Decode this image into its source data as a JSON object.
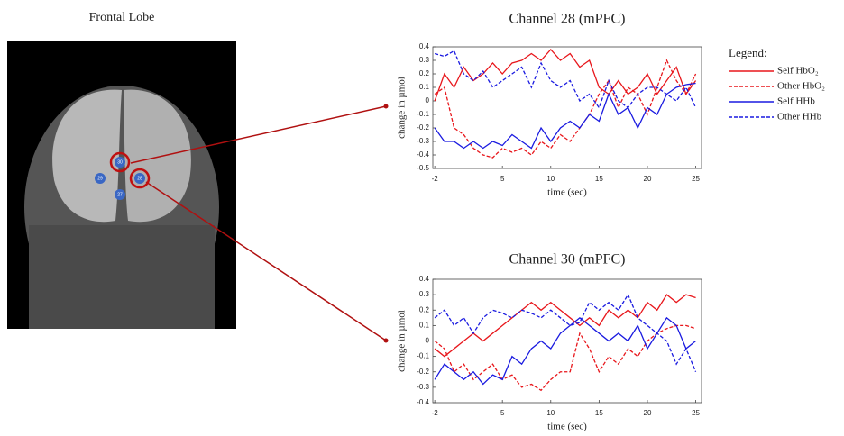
{
  "brain": {
    "title": "Frontal Lobe",
    "electrodes": [
      "30",
      "29",
      "28",
      "27"
    ]
  },
  "legend_title": "Legend:",
  "chart_data": [
    {
      "type": "line",
      "title": "Channel 28 (mPFC)",
      "x_label": "time (sec)",
      "y_label": "change in µmol",
      "x": [
        -2,
        -1,
        0,
        1,
        2,
        3,
        4,
        5,
        6,
        7,
        8,
        9,
        10,
        11,
        12,
        13,
        14,
        15,
        16,
        17,
        18,
        19,
        20,
        21,
        22,
        23,
        24,
        25
      ],
      "xlim": [
        -2.2,
        25.6
      ],
      "xticks": [
        -2,
        5,
        10,
        15,
        20,
        25
      ],
      "ylim": [
        -0.5,
        0.4
      ],
      "yticks": [
        -0.5,
        -0.4,
        -0.3,
        -0.2,
        -0.1,
        0,
        0.1,
        0.2,
        0.3,
        0.4
      ],
      "series": [
        {
          "name": "Self HbO₂",
          "color": "#e8161b",
          "style": "solid",
          "values": [
            0,
            0.2,
            0.1,
            0.25,
            0.15,
            0.2,
            0.28,
            0.2,
            0.28,
            0.3,
            0.35,
            0.3,
            0.38,
            0.3,
            0.35,
            0.25,
            0.3,
            0.1,
            0.05,
            0.15,
            0.05,
            0.1,
            0.2,
            0.05,
            0.15,
            0.25,
            0.05,
            0.15
          ]
        },
        {
          "name": "Other HbO₂",
          "color": "#e8161b",
          "style": "dashed",
          "values": [
            0.05,
            0.1,
            -0.2,
            -0.25,
            -0.35,
            -0.4,
            -0.42,
            -0.35,
            -0.38,
            -0.35,
            -0.4,
            -0.3,
            -0.35,
            -0.25,
            -0.3,
            -0.2,
            -0.1,
            0.05,
            0.15,
            -0.05,
            0.1,
            0.05,
            -0.1,
            0.1,
            0.3,
            0.15,
            0.05,
            0.2
          ]
        },
        {
          "name": "Self HHb",
          "color": "#1a1ae0",
          "style": "solid",
          "values": [
            -0.2,
            -0.3,
            -0.3,
            -0.35,
            -0.3,
            -0.35,
            -0.3,
            -0.33,
            -0.25,
            -0.3,
            -0.35,
            -0.2,
            -0.3,
            -0.2,
            -0.15,
            -0.2,
            -0.1,
            -0.15,
            0.05,
            -0.1,
            -0.05,
            -0.2,
            -0.05,
            -0.1,
            0.05,
            0.1,
            0.12,
            0.13
          ]
        },
        {
          "name": "Other HHb",
          "color": "#1a1ae0",
          "style": "dashed",
          "values": [
            0.35,
            0.33,
            0.37,
            0.2,
            0.15,
            0.22,
            0.1,
            0.15,
            0.2,
            0.25,
            0.1,
            0.28,
            0.15,
            0.1,
            0.15,
            0,
            0.05,
            -0.05,
            0.15,
            0,
            -0.05,
            0.05,
            0.1,
            0.1,
            0.05,
            0,
            0.1,
            -0.05
          ]
        }
      ]
    },
    {
      "type": "line",
      "title": "Channel 30 (mPFC)",
      "x_label": "time (sec)",
      "y_label": "change in µmol",
      "x": [
        -2,
        -1,
        0,
        1,
        2,
        3,
        4,
        5,
        6,
        7,
        8,
        9,
        10,
        11,
        12,
        13,
        14,
        15,
        16,
        17,
        18,
        19,
        20,
        21,
        22,
        23,
        24,
        25
      ],
      "xlim": [
        -2.2,
        25.6
      ],
      "xticks": [
        -2,
        5,
        10,
        15,
        20,
        25
      ],
      "ylim": [
        -0.4,
        0.4
      ],
      "yticks": [
        -0.4,
        -0.3,
        -0.2,
        -0.1,
        0,
        0.1,
        0.2,
        0.3,
        0.4
      ],
      "series": [
        {
          "name": "Self HbO₂",
          "color": "#e8161b",
          "style": "solid",
          "values": [
            -0.05,
            -0.1,
            -0.05,
            0,
            0.05,
            0,
            0.05,
            0.1,
            0.15,
            0.2,
            0.25,
            0.2,
            0.25,
            0.2,
            0.15,
            0.1,
            0.15,
            0.1,
            0.2,
            0.15,
            0.2,
            0.15,
            0.25,
            0.2,
            0.3,
            0.25,
            0.3,
            0.28
          ]
        },
        {
          "name": "Other HbO₂",
          "color": "#e8161b",
          "style": "dashed",
          "values": [
            0,
            -0.05,
            -0.2,
            -0.15,
            -0.25,
            -0.2,
            -0.15,
            -0.25,
            -0.22,
            -0.3,
            -0.28,
            -0.32,
            -0.25,
            -0.2,
            -0.2,
            0.05,
            -0.05,
            -0.2,
            -0.1,
            -0.15,
            -0.05,
            -0.1,
            0,
            0.05,
            0.08,
            0.1,
            0.1,
            0.08
          ]
        },
        {
          "name": "Self HHb",
          "color": "#1a1ae0",
          "style": "solid",
          "values": [
            -0.25,
            -0.15,
            -0.2,
            -0.25,
            -0.2,
            -0.28,
            -0.22,
            -0.25,
            -0.1,
            -0.15,
            -0.05,
            0,
            -0.05,
            0.05,
            0.1,
            0.15,
            0.1,
            0.05,
            0,
            0.05,
            0,
            0.1,
            -0.05,
            0.05,
            0.15,
            0.1,
            -0.05,
            0
          ]
        },
        {
          "name": "Other HHb",
          "color": "#1a1ae0",
          "style": "dashed",
          "values": [
            0.15,
            0.2,
            0.1,
            0.15,
            0.05,
            0.15,
            0.2,
            0.18,
            0.15,
            0.2,
            0.18,
            0.15,
            0.2,
            0.15,
            0.1,
            0.12,
            0.25,
            0.2,
            0.25,
            0.2,
            0.3,
            0.15,
            0.1,
            0.05,
            0,
            -0.15,
            -0.05,
            -0.2
          ]
        }
      ]
    }
  ]
}
